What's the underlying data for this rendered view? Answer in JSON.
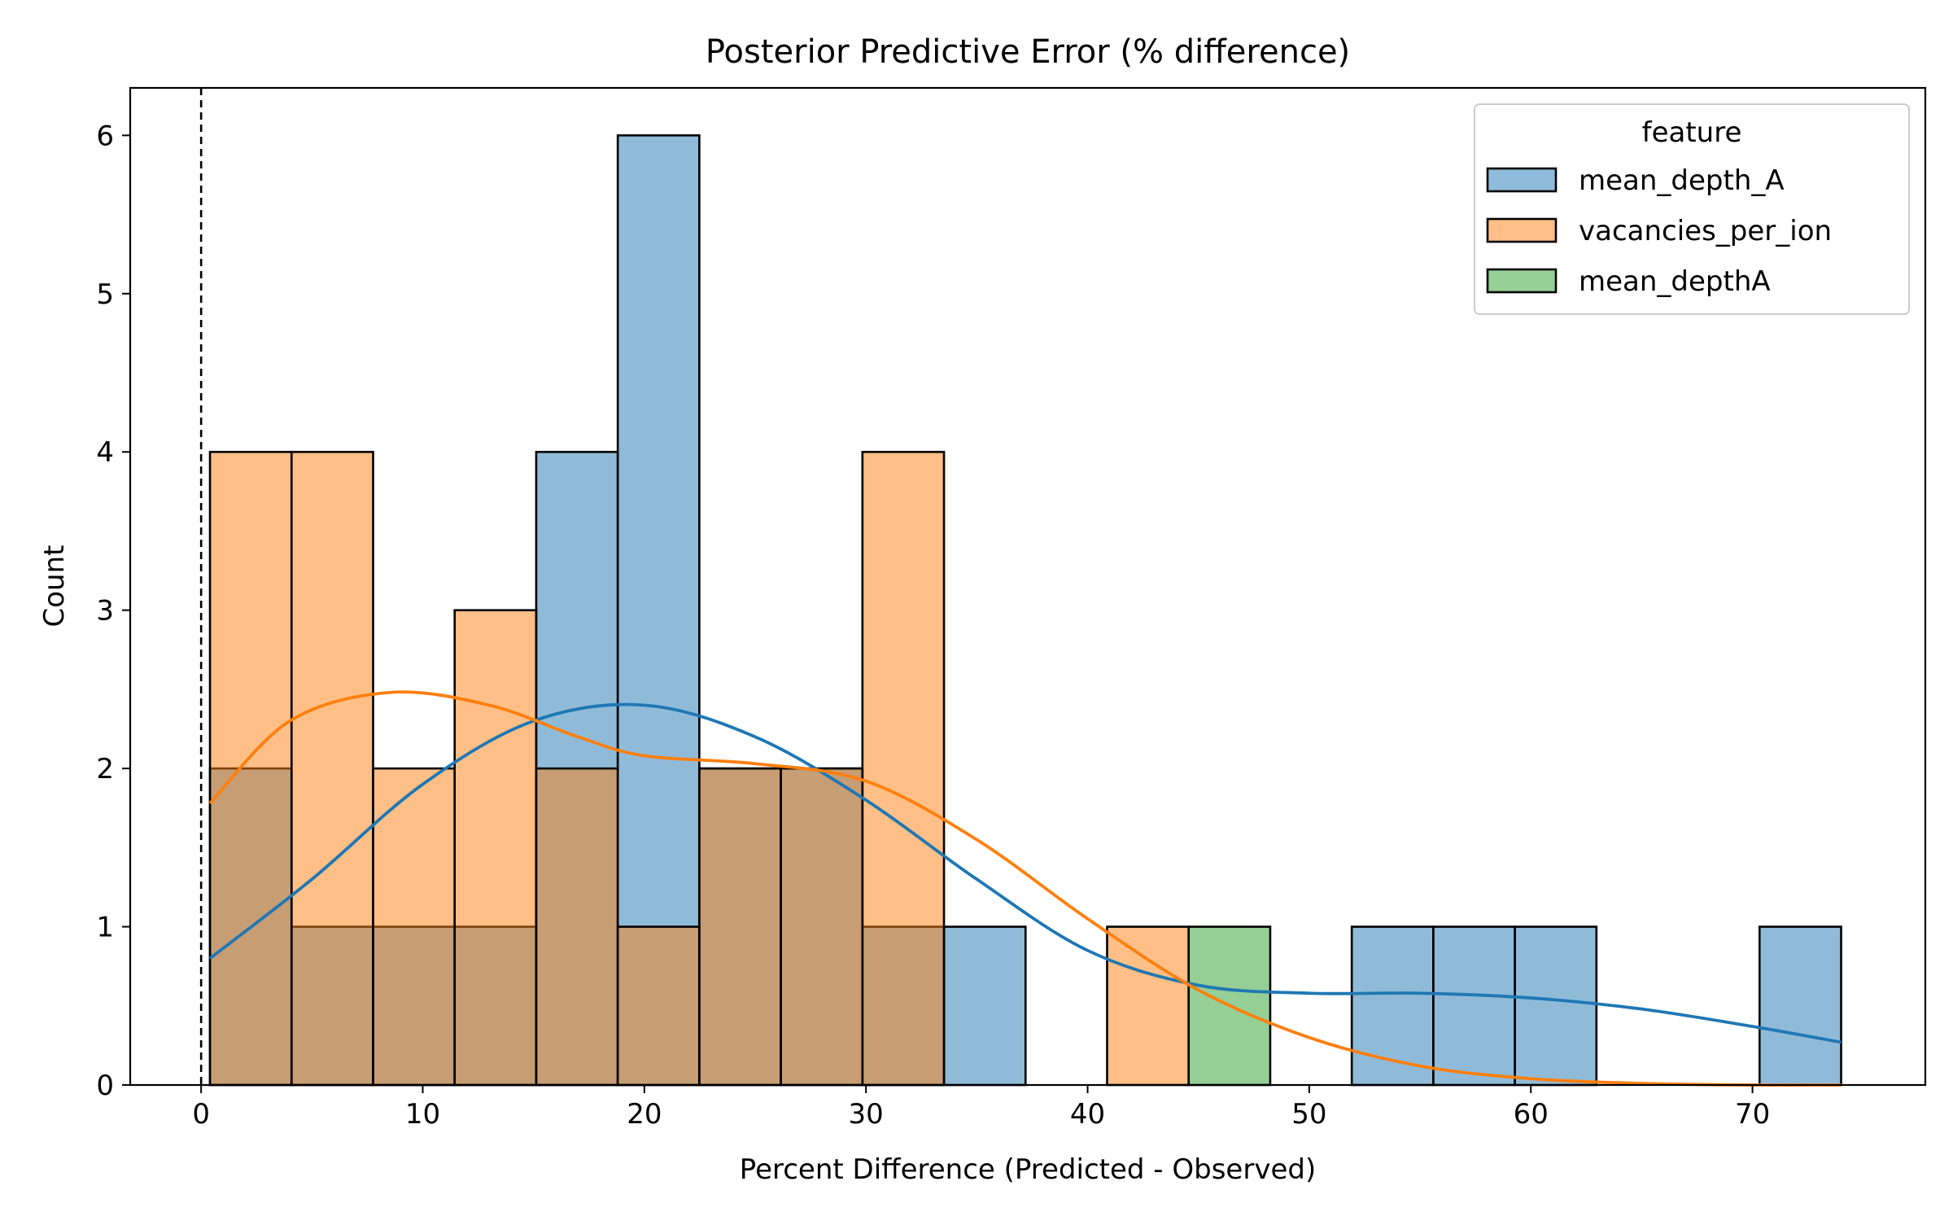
{
  "chart_data": {
    "type": "bar",
    "title": "Posterior Predictive Error (% difference)",
    "xlabel": "Percent Difference (Predicted - Observed)",
    "ylabel": "Count",
    "xlim": [
      -3.2,
      77.8
    ],
    "ylim": [
      0,
      6.3
    ],
    "xticks": [
      0,
      10,
      20,
      30,
      40,
      50,
      60,
      70
    ],
    "yticks": [
      0,
      1,
      2,
      3,
      4,
      5,
      6
    ],
    "grid": false,
    "reference_line": {
      "x": 0,
      "style": "dashed"
    },
    "legend": {
      "title": "feature",
      "position": "top-right",
      "entries": [
        "mean_depth_A",
        "vacancies_per_ion",
        "mean_depthA"
      ]
    },
    "bin_edges": [
      0.4,
      4.08,
      7.76,
      11.44,
      15.12,
      18.8,
      22.48,
      26.16,
      29.84,
      33.52,
      37.2,
      40.88,
      44.56,
      48.24,
      51.92,
      55.6,
      59.28,
      62.96,
      66.64,
      70.32,
      74.0
    ],
    "series": [
      {
        "name": "mean_depth_A",
        "color": "#1f77b4",
        "counts": [
          2,
          1,
          1,
          1,
          4,
          6,
          2,
          2,
          1,
          1,
          0,
          0,
          0,
          0,
          1,
          1,
          1,
          0,
          0,
          1
        ],
        "kde": {
          "x": [
            0.4,
            5,
            10,
            15,
            20,
            25,
            30,
            35,
            40,
            45,
            50,
            55,
            60,
            65,
            70,
            74
          ],
          "y": [
            0.8,
            1.3,
            1.9,
            2.3,
            2.4,
            2.2,
            1.8,
            1.3,
            0.85,
            0.63,
            0.58,
            0.58,
            0.55,
            0.48,
            0.37,
            0.27
          ]
        }
      },
      {
        "name": "vacancies_per_ion",
        "color": "#ff7f0e",
        "counts": [
          4,
          4,
          2,
          3,
          2,
          1,
          2,
          2,
          4,
          0,
          0,
          1,
          0,
          0,
          0,
          0,
          0,
          0,
          0,
          0
        ],
        "kde": {
          "x": [
            0.4,
            4,
            8.5,
            13,
            17,
            20,
            25,
            30,
            35,
            40,
            45,
            50,
            55,
            60,
            65,
            70,
            74
          ],
          "y": [
            1.78,
            2.3,
            2.48,
            2.4,
            2.2,
            2.08,
            2.03,
            1.92,
            1.55,
            1.05,
            0.6,
            0.3,
            0.12,
            0.04,
            0.01,
            0.0,
            0.0
          ]
        }
      },
      {
        "name": "mean_depthA",
        "color": "#2ca02c",
        "counts": [
          0,
          0,
          0,
          0,
          0,
          0,
          0,
          0,
          0,
          0,
          0,
          0,
          1,
          0,
          0,
          0,
          0,
          0,
          0,
          0
        ],
        "kde": null
      }
    ]
  }
}
